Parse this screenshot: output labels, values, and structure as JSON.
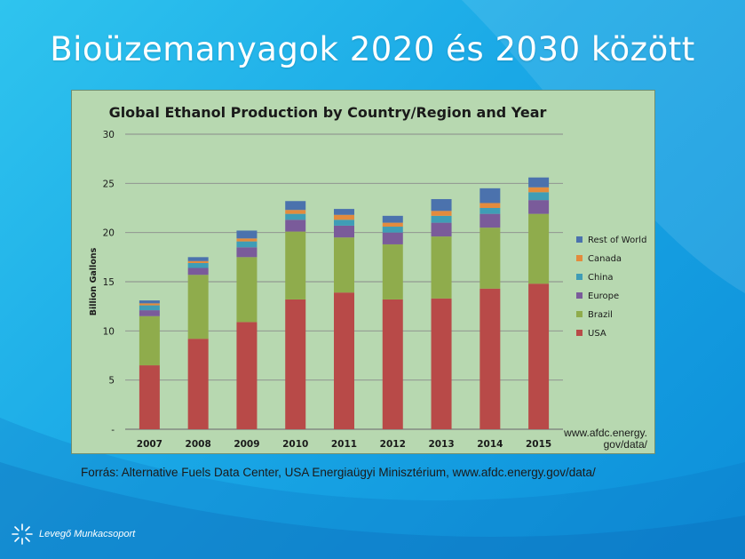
{
  "slide": {
    "title": "Bioüzemanyagok 2020 és 2030 között",
    "source": "Forrás: Alternative Fuels Data  Center, USA Energiaügyi Minisztérium, www.afdc.energy.gov/data/",
    "logo_text": "Levegő Munkacsoport"
  },
  "colors": {
    "USA": "#b84a48",
    "Brazil": "#8fac4c",
    "Europe": "#7a5b9a",
    "China": "#3f9db6",
    "Canada": "#e38b3d",
    "Rest of World": "#4b72ad"
  },
  "chart_data": {
    "type": "bar",
    "stacked": true,
    "title": "Global Ethanol Production by Country/Region and Year",
    "ylabel": "Billion Gallons",
    "xlabel": "",
    "note": "www.afdc.energy.\ngov/data/",
    "ylim": [
      0,
      30
    ],
    "yticks": [
      "-",
      "5",
      "10",
      "15",
      "20",
      "25",
      "30"
    ],
    "grid": true,
    "legend_position": "right",
    "categories": [
      "2007",
      "2008",
      "2009",
      "2010",
      "2011",
      "2012",
      "2013",
      "2014",
      "2015"
    ],
    "series": [
      {
        "name": "USA",
        "values": [
          6.5,
          9.2,
          10.9,
          13.2,
          13.9,
          13.2,
          13.3,
          14.3,
          14.8
        ]
      },
      {
        "name": "Brazil",
        "values": [
          5.0,
          6.5,
          6.6,
          6.9,
          5.6,
          5.6,
          6.3,
          6.2,
          7.1
        ]
      },
      {
        "name": "Europe",
        "values": [
          0.6,
          0.7,
          1.0,
          1.2,
          1.2,
          1.2,
          1.4,
          1.4,
          1.4
        ]
      },
      {
        "name": "China",
        "values": [
          0.5,
          0.5,
          0.6,
          0.6,
          0.6,
          0.6,
          0.7,
          0.6,
          0.8
        ]
      },
      {
        "name": "Canada",
        "values": [
          0.2,
          0.2,
          0.3,
          0.4,
          0.5,
          0.4,
          0.5,
          0.5,
          0.5
        ]
      },
      {
        "name": "Rest of World",
        "values": [
          0.3,
          0.4,
          0.8,
          0.9,
          0.6,
          0.7,
          1.2,
          1.5,
          1.0
        ]
      }
    ]
  }
}
